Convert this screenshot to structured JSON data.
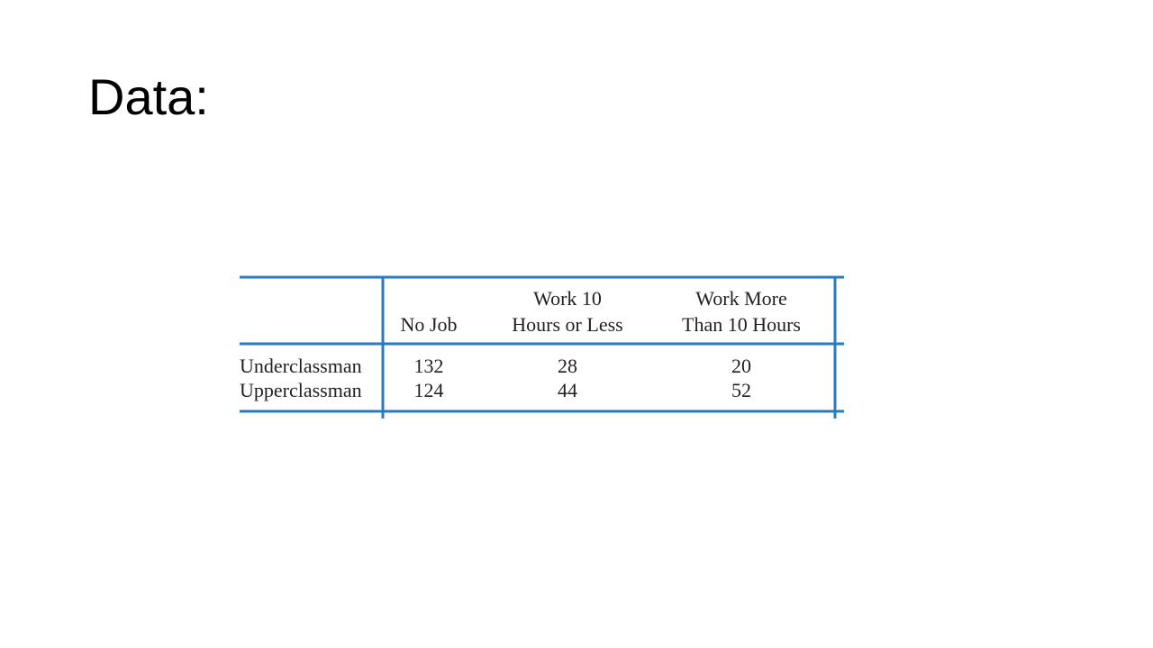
{
  "title": "Data:",
  "table": {
    "columns": [
      {
        "lines": [
          "No Job"
        ]
      },
      {
        "lines": [
          "Work 10",
          "Hours or Less"
        ]
      },
      {
        "lines": [
          "Work More",
          "Than 10 Hours"
        ]
      }
    ],
    "rows": [
      {
        "label": "Underclassman",
        "cells": [
          132,
          28,
          20
        ]
      },
      {
        "label": "Upperclassman",
        "cells": [
          124,
          44,
          52
        ]
      }
    ]
  }
}
